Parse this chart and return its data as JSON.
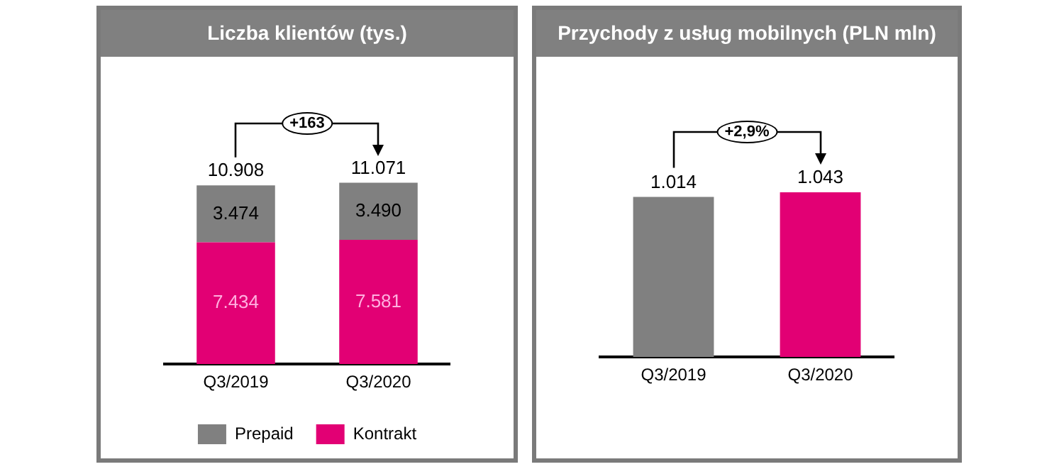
{
  "chart_data": [
    {
      "type": "bar",
      "title": "Liczba klientów (tys.)",
      "categories": [
        "Q3/2019",
        "Q3/2020"
      ],
      "stacked": true,
      "legend": "bottom",
      "tick_labels": "x",
      "totals": [
        "10.908",
        "11.071"
      ],
      "annotations": [
        "+163"
      ],
      "series": [
        {
          "name": "Kontrakt",
          "color": "#e20074",
          "values": [
            7434,
            7581
          ],
          "value_labels": [
            "7.434",
            "7.581"
          ]
        },
        {
          "name": "Prepaid",
          "color": "#808080",
          "values": [
            3474,
            3490
          ],
          "value_labels": [
            "3.474",
            "3.490"
          ]
        }
      ]
    },
    {
      "type": "bar",
      "title": "Przychody z usług mobilnych (PLN mln)",
      "categories": [
        "Q3/2019",
        "Q3/2020"
      ],
      "legend": false,
      "tick_labels": "x",
      "annotations": [
        "+2,9%"
      ],
      "values": [
        1014,
        1043
      ],
      "colors": [
        "#808080",
        "#e20074"
      ],
      "value_labels": [
        "1.014",
        "1.043"
      ]
    }
  ]
}
